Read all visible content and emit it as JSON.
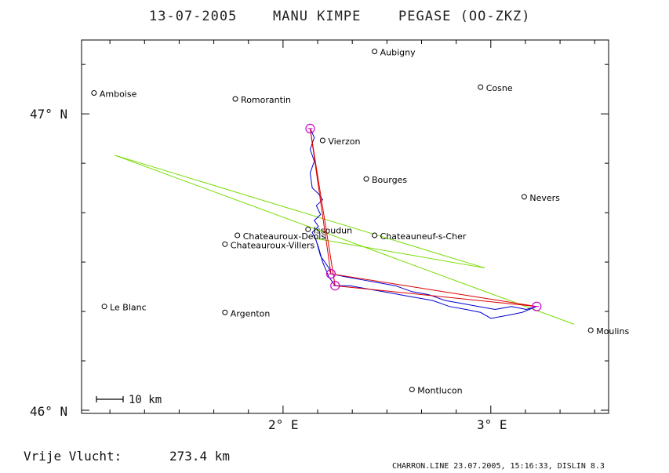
{
  "header": {
    "date": "13-07-2005",
    "pilot": "MANU KIMPE",
    "glider": "PEGASE (OO-ZKZ)"
  },
  "footer": {
    "distance_label": "Vrije Vlucht:",
    "distance_value": "273.4 km",
    "credit": "CHARRON.LINE 23.07.2005, 15:16:33, DISLIN 8.3"
  },
  "scale_bar": {
    "label": "10 km"
  },
  "colors": {
    "track": "#0000cc",
    "route": "#dd0000",
    "line": "#77dd00",
    "turnpoint": "#cc00cc",
    "frame": "#000000"
  },
  "chart_data": {
    "type": "map",
    "title": "13-07-2005   MANU KIMPE   PEGASE (OO-ZKZ)",
    "x_ticks": [
      {
        "lon": 2.0,
        "label": "2° E"
      },
      {
        "lon": 3.0,
        "label": "3° E"
      }
    ],
    "y_ticks": [
      {
        "lat": 47.0,
        "label": "47° N"
      },
      {
        "lat": 46.0,
        "label": "46° N"
      }
    ],
    "xlim": [
      1.06,
      3.58
    ],
    "ylim": [
      45.99,
      47.25
    ],
    "towns": [
      {
        "name": "Aubigny",
        "lon": 2.44,
        "lat": 47.21
      },
      {
        "name": "Amboise",
        "lon": 1.09,
        "lat": 47.07
      },
      {
        "name": "Cosne",
        "lon": 2.95,
        "lat": 47.09
      },
      {
        "name": "Romorantin",
        "lon": 1.77,
        "lat": 47.05
      },
      {
        "name": "Vierzon",
        "lon": 2.19,
        "lat": 46.91
      },
      {
        "name": "Bourges",
        "lon": 2.4,
        "lat": 46.78
      },
      {
        "name": "Nevers",
        "lon": 3.16,
        "lat": 46.72
      },
      {
        "name": "Issoudun",
        "lon": 2.12,
        "lat": 46.61
      },
      {
        "name": "Chateauroux-Deols",
        "lon": 1.78,
        "lat": 46.59
      },
      {
        "name": "Chateauneuf-s-Cher",
        "lon": 2.44,
        "lat": 46.59
      },
      {
        "name": "Chateauroux-Villers",
        "lon": 1.72,
        "lat": 46.56
      },
      {
        "name": "Le Blanc",
        "lon": 1.14,
        "lat": 46.35
      },
      {
        "name": "Argenton",
        "lon": 1.72,
        "lat": 46.33
      },
      {
        "name": "Moulins",
        "lon": 3.48,
        "lat": 46.27
      },
      {
        "name": "Montlucon",
        "lon": 2.62,
        "lat": 46.07
      }
    ],
    "turnpoints": [
      {
        "lon": 2.13,
        "lat": 46.95
      },
      {
        "lon": 2.23,
        "lat": 46.46
      },
      {
        "lon": 2.25,
        "lat": 46.42
      },
      {
        "lon": 3.22,
        "lat": 46.35
      }
    ],
    "route": [
      {
        "lon": 2.13,
        "lat": 46.95
      },
      {
        "lon": 2.23,
        "lat": 46.46
      },
      {
        "lon": 3.22,
        "lat": 46.35
      },
      {
        "lon": 2.25,
        "lat": 46.42
      },
      {
        "lon": 2.13,
        "lat": 46.95
      }
    ],
    "green_lines": [
      [
        {
          "lon": 1.19,
          "lat": 46.86
        },
        {
          "lon": 3.4,
          "lat": 46.29
        }
      ],
      [
        {
          "lon": 1.19,
          "lat": 46.86
        },
        {
          "lon": 2.97,
          "lat": 46.48
        }
      ],
      [
        {
          "lon": 2.15,
          "lat": 46.58
        },
        {
          "lon": 2.97,
          "lat": 46.48
        }
      ]
    ],
    "track": [
      {
        "lon": 2.13,
        "lat": 46.95
      },
      {
        "lon": 2.15,
        "lat": 46.92
      },
      {
        "lon": 2.13,
        "lat": 46.88
      },
      {
        "lon": 2.15,
        "lat": 46.84
      },
      {
        "lon": 2.13,
        "lat": 46.8
      },
      {
        "lon": 2.14,
        "lat": 46.75
      },
      {
        "lon": 2.17,
        "lat": 46.73
      },
      {
        "lon": 2.19,
        "lat": 46.71
      },
      {
        "lon": 2.16,
        "lat": 46.69
      },
      {
        "lon": 2.18,
        "lat": 46.66
      },
      {
        "lon": 2.15,
        "lat": 46.64
      },
      {
        "lon": 2.17,
        "lat": 46.62
      },
      {
        "lon": 2.14,
        "lat": 46.6
      },
      {
        "lon": 2.16,
        "lat": 46.57
      },
      {
        "lon": 2.18,
        "lat": 46.52
      },
      {
        "lon": 2.22,
        "lat": 46.48
      },
      {
        "lon": 2.23,
        "lat": 46.46
      },
      {
        "lon": 2.3,
        "lat": 46.45
      },
      {
        "lon": 2.38,
        "lat": 46.44
      },
      {
        "lon": 2.46,
        "lat": 46.43
      },
      {
        "lon": 2.54,
        "lat": 46.42
      },
      {
        "lon": 2.62,
        "lat": 46.4
      },
      {
        "lon": 2.7,
        "lat": 46.39
      },
      {
        "lon": 2.78,
        "lat": 46.37
      },
      {
        "lon": 2.86,
        "lat": 46.36
      },
      {
        "lon": 2.94,
        "lat": 46.35
      },
      {
        "lon": 3.02,
        "lat": 46.34
      },
      {
        "lon": 3.1,
        "lat": 46.35
      },
      {
        "lon": 3.17,
        "lat": 46.34
      },
      {
        "lon": 3.22,
        "lat": 46.35
      },
      {
        "lon": 3.15,
        "lat": 46.33
      },
      {
        "lon": 3.08,
        "lat": 46.32
      },
      {
        "lon": 3.0,
        "lat": 46.31
      },
      {
        "lon": 2.95,
        "lat": 46.33
      },
      {
        "lon": 2.88,
        "lat": 46.34
      },
      {
        "lon": 2.8,
        "lat": 46.35
      },
      {
        "lon": 2.72,
        "lat": 46.37
      },
      {
        "lon": 2.64,
        "lat": 46.38
      },
      {
        "lon": 2.56,
        "lat": 46.39
      },
      {
        "lon": 2.48,
        "lat": 46.4
      },
      {
        "lon": 2.4,
        "lat": 46.41
      },
      {
        "lon": 2.32,
        "lat": 46.42
      },
      {
        "lon": 2.25,
        "lat": 46.42
      },
      {
        "lon": 2.22,
        "lat": 46.45
      },
      {
        "lon": 2.19,
        "lat": 46.5
      },
      {
        "lon": 2.17,
        "lat": 46.55
      },
      {
        "lon": 2.15,
        "lat": 46.59
      }
    ]
  }
}
